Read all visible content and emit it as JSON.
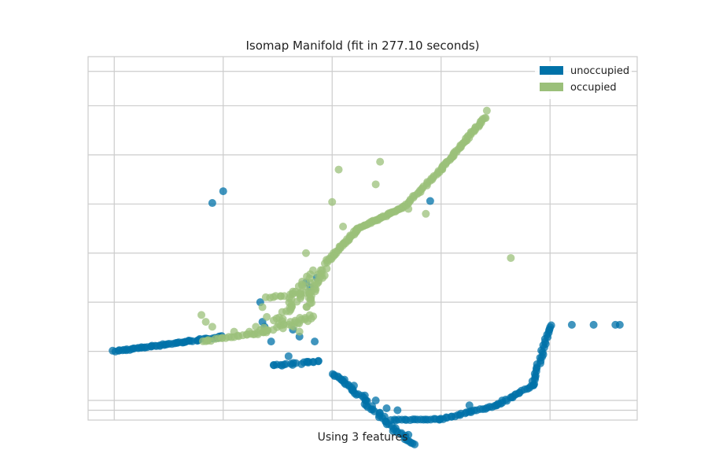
{
  "chart_data": {
    "type": "scatter",
    "title": "Isomap Manifold (fit in 277.10 seconds)",
    "xlabel": "Using 3 features",
    "ylabel": "",
    "xlim": [
      -0.12,
      2.4
    ],
    "ylim": [
      -0.7,
      3.0
    ],
    "grid": true,
    "legend_position": "top-right",
    "x_ticks": [
      0,
      0.5,
      1.0,
      1.5,
      2.0
    ],
    "y_ticks": [
      -0.6,
      -0.5,
      0,
      0.5,
      1.0,
      1.5,
      2.0,
      2.5,
      2.85
    ],
    "series": [
      {
        "name": "unoccupied",
        "color": "#0072a8",
        "curves": [
          {
            "from": [
              0,
              0
            ],
            "to": [
              0.5,
              0.15
            ],
            "n": 60,
            "jitter": 0.015
          },
          {
            "from": [
              0.73,
              -0.15
            ],
            "to": [
              0.94,
              -0.1
            ],
            "n": 20,
            "jitter": 0.02
          },
          {
            "from": [
              1.0,
              -0.23
            ],
            "to": [
              1.05,
              -0.3
            ],
            "n": 8,
            "jitter": 0.01
          },
          {
            "from": [
              1.05,
              -0.3
            ],
            "to": [
              1.37,
              -0.96
            ],
            "n": 50,
            "jitter": 0.025
          },
          {
            "from": [
              1.27,
              -0.7
            ],
            "to": [
              1.5,
              -0.69
            ],
            "n": 20,
            "jitter": 0.01
          },
          {
            "from": [
              1.5,
              -0.69
            ],
            "to": [
              1.75,
              -0.55
            ],
            "n": 25,
            "jitter": 0.015
          },
          {
            "from": [
              1.75,
              -0.55
            ],
            "to": [
              1.92,
              -0.35
            ],
            "n": 20,
            "jitter": 0.015
          },
          {
            "from": [
              1.92,
              -0.35
            ],
            "to": [
              2.0,
              0.27
            ],
            "n": 30,
            "jitter": 0.015
          }
        ],
        "points": [
          [
            0.45,
            1.51
          ],
          [
            0.5,
            1.63
          ],
          [
            0.67,
            0.5
          ],
          [
            0.68,
            0.3
          ],
          [
            0.69,
            0.25
          ],
          [
            0.72,
            0.1
          ],
          [
            0.82,
            0.22
          ],
          [
            0.85,
            0.15
          ],
          [
            0.88,
            0.7
          ],
          [
            0.9,
            0.65
          ],
          [
            0.93,
            0.75
          ],
          [
            0.92,
            0.1
          ],
          [
            0.8,
            -0.05
          ],
          [
            1.1,
            -0.35
          ],
          [
            1.15,
            -0.45
          ],
          [
            1.2,
            -0.5
          ],
          [
            1.25,
            -0.58
          ],
          [
            1.3,
            -0.6
          ],
          [
            1.35,
            -0.85
          ],
          [
            1.45,
            1.53
          ],
          [
            1.63,
            -0.55
          ],
          [
            2.1,
            0.27
          ],
          [
            2.2,
            0.27
          ],
          [
            2.3,
            0.27
          ],
          [
            2.32,
            0.27
          ]
        ]
      },
      {
        "name": "occupied",
        "color": "#9bc07a",
        "curves": [
          {
            "from": [
              0.4,
              0.1
            ],
            "to": [
              0.7,
              0.2
            ],
            "n": 25,
            "jitter": 0.02
          },
          {
            "from": [
              0.68,
              0.2
            ],
            "to": [
              0.9,
              0.35
            ],
            "n": 30,
            "jitter": 0.06
          },
          {
            "from": [
              0.88,
              0.45
            ],
            "to": [
              0.97,
              0.85
            ],
            "n": 25,
            "jitter": 0.03
          },
          {
            "from": [
              0.97,
              0.9
            ],
            "to": [
              1.12,
              1.25
            ],
            "n": 40,
            "jitter": 0.015
          },
          {
            "from": [
              1.12,
              1.25
            ],
            "to": [
              1.33,
              1.47
            ],
            "n": 40,
            "jitter": 0.012
          },
          {
            "from": [
              1.33,
              1.47
            ],
            "to": [
              1.5,
              1.85
            ],
            "n": 30,
            "jitter": 0.012
          },
          {
            "from": [
              1.5,
              1.85
            ],
            "to": [
              1.7,
              2.38
            ],
            "n": 50,
            "jitter": 0.012
          },
          {
            "from": [
              0.7,
              0.55
            ],
            "to": [
              0.9,
              0.6
            ],
            "n": 15,
            "jitter": 0.02
          },
          {
            "from": [
              0.75,
              0.3
            ],
            "to": [
              0.92,
              0.8
            ],
            "n": 35,
            "jitter": 0.06
          }
        ],
        "points": [
          [
            0.4,
            0.37
          ],
          [
            0.42,
            0.3
          ],
          [
            0.45,
            0.25
          ],
          [
            0.55,
            0.2
          ],
          [
            0.62,
            0.2
          ],
          [
            0.65,
            0.25
          ],
          [
            0.68,
            0.45
          ],
          [
            0.7,
            0.35
          ],
          [
            0.85,
            0.2
          ],
          [
            0.88,
            1.0
          ],
          [
            1.0,
            1.52
          ],
          [
            1.03,
            1.85
          ],
          [
            1.05,
            1.27
          ],
          [
            1.1,
            1.22
          ],
          [
            1.2,
            1.7
          ],
          [
            1.22,
            1.93
          ],
          [
            1.35,
            1.45
          ],
          [
            1.43,
            1.4
          ],
          [
            1.71,
            2.45
          ],
          [
            1.82,
            0.95
          ]
        ]
      }
    ]
  }
}
